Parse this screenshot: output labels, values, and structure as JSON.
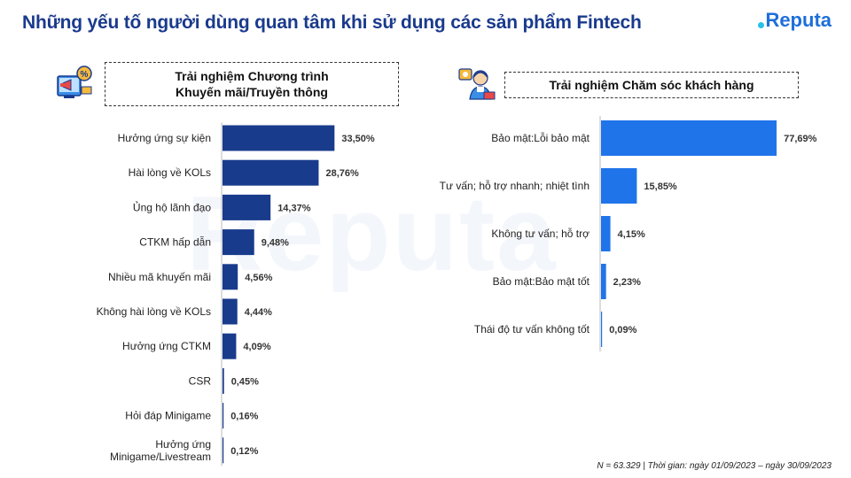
{
  "page": {
    "title": "Những yếu tố người dùng quan tâm khi sử dụng các sản phẩm Fintech",
    "logo": "Reputa",
    "watermark": "Reputa",
    "footnote": "N = 63.329 | Thời gian: ngày 01/09/2023 – ngày 30/09/2023"
  },
  "colors": {
    "left_bar": "#183b8c",
    "right_bar": "#1f74ea",
    "title": "#1a3a8c"
  },
  "icons": {
    "left": "promotion-megaphone-icon",
    "right": "customer-support-agent-icon"
  },
  "chart_data": [
    {
      "type": "bar",
      "orientation": "horizontal",
      "title": "Trải nghiệm Chương trình Khuyến mãi/Truyền thông",
      "title_lines": [
        "Trải nghiệm Chương trình",
        "Khuyến mãi/Truyền thông"
      ],
      "categories": [
        [
          "Hưởng ứng sự kiện"
        ],
        [
          "Hài lòng về KOLs"
        ],
        [
          "Ủng hộ lãnh đạo"
        ],
        [
          "CTKM hấp dẫn"
        ],
        [
          "Nhiều mã khuyến mãi"
        ],
        [
          "Không hài lòng về KOLs"
        ],
        [
          "Hưởng ứng CTKM"
        ],
        [
          "CSR"
        ],
        [
          "Hỏi đáp Minigame"
        ],
        [
          "Hưởng ứng",
          "Minigame/Livestream"
        ]
      ],
      "values": [
        33.5,
        28.76,
        14.37,
        9.48,
        4.56,
        4.44,
        4.09,
        0.45,
        0.16,
        0.12
      ],
      "labels": [
        "33,50%",
        "28,76%",
        "14,37%",
        "9,48%",
        "4,56%",
        "4,44%",
        "4,09%",
        "0,45%",
        "0,16%",
        "0,12%"
      ],
      "xlim": [
        0,
        35
      ]
    },
    {
      "type": "bar",
      "orientation": "horizontal",
      "title": "Trải nghiệm Chăm sóc khách hàng",
      "title_lines": [
        "Trải nghiệm Chăm sóc khách hàng"
      ],
      "categories": [
        [
          "Bảo mật:Lỗi bảo mật"
        ],
        [
          "Tư vấn; hỗ trợ nhanh; nhiệt tình"
        ],
        [
          "Không tư vấn; hỗ trợ"
        ],
        [
          "Bảo mật:Bảo mật tốt"
        ],
        [
          "Thái độ tư vấn không tốt"
        ]
      ],
      "values": [
        77.69,
        15.85,
        4.15,
        2.23,
        0.09
      ],
      "labels": [
        "77,69%",
        "15,85%",
        "4,15%",
        "2,23%",
        "0,09%"
      ],
      "xlim": [
        0,
        80
      ]
    }
  ]
}
